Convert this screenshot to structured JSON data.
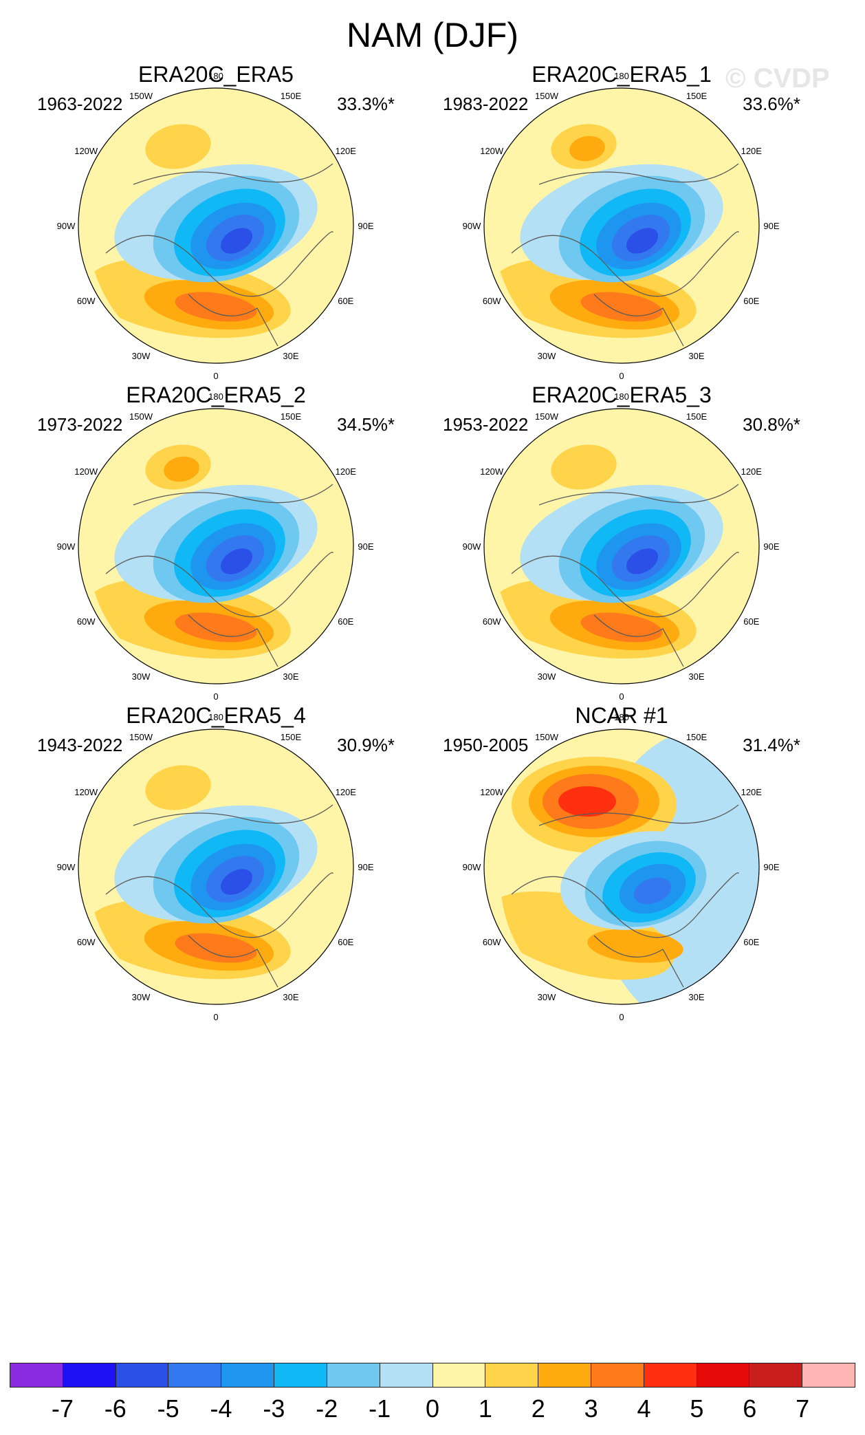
{
  "figure": {
    "title": "NAM (DJF)",
    "watermark": "© CVDP"
  },
  "panels": [
    {
      "title": "ERA20C_ERA5",
      "years": "1963-2022",
      "pct": "33.3%*"
    },
    {
      "title": "ERA20C_ERA5_1",
      "years": "1983-2022",
      "pct": "33.6%*"
    },
    {
      "title": "ERA20C_ERA5_2",
      "years": "1973-2022",
      "pct": "34.5%*"
    },
    {
      "title": "ERA20C_ERA5_3",
      "years": "1953-2022",
      "pct": "30.8%*"
    },
    {
      "title": "ERA20C_ERA5_4",
      "years": "1943-2022",
      "pct": "30.9%*"
    },
    {
      "title": "NCAR #1",
      "years": "1950-2005",
      "pct": "31.4%*"
    }
  ],
  "lon_labels": {
    "l180": "180",
    "l150w": "150W",
    "l150e": "150E",
    "l120w": "120W",
    "l120e": "120E",
    "l90w": "90W",
    "l90e": "90E",
    "l60w": "60W",
    "l60e": "60E",
    "l30w": "30W",
    "l30e": "30E",
    "l0": "0"
  },
  "colorbar": {
    "labels": [
      "-7",
      "-6",
      "-5",
      "-4",
      "-3",
      "-2",
      "-1",
      "0",
      "1",
      "2",
      "3",
      "4",
      "5",
      "6",
      "7"
    ],
    "colors": [
      "#8a2be2",
      "#1c10f5",
      "#2b50e8",
      "#3478f0",
      "#1e96f0",
      "#10b8f5",
      "#6ec8f0",
      "#b4e0f5",
      "#fff5a8",
      "#ffd34a",
      "#ffab0f",
      "#ff7a1a",
      "#ff3010",
      "#e60a0a",
      "#c81e1e",
      "#ffb4b4"
    ]
  }
}
